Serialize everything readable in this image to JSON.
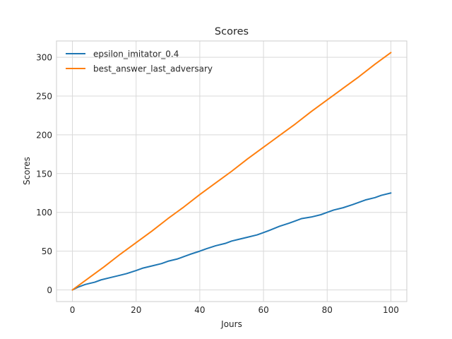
{
  "chart_data": {
    "type": "line",
    "title": "Scores",
    "xlabel": "Jours",
    "ylabel": "Scores",
    "xlim": [
      -5,
      105
    ],
    "ylim": [
      -15,
      321
    ],
    "xticks": [
      0,
      20,
      40,
      60,
      80,
      100
    ],
    "yticks": [
      0,
      50,
      100,
      150,
      200,
      250,
      300
    ],
    "grid": true,
    "legend_position": "top-left",
    "series": [
      {
        "name": "epsilon_imitator_0.4",
        "color": "#1f77b4",
        "x": [
          0,
          2,
          4,
          7,
          9,
          12,
          15,
          17,
          20,
          22,
          25,
          28,
          30,
          33,
          35,
          37,
          40,
          42,
          45,
          48,
          50,
          52,
          55,
          58,
          60,
          62,
          65,
          68,
          70,
          72,
          75,
          78,
          80,
          82,
          85,
          88,
          90,
          92,
          95,
          97,
          100
        ],
        "values": [
          0,
          4,
          7,
          10,
          13,
          16,
          19,
          21,
          25,
          28,
          31,
          34,
          37,
          40,
          43,
          46,
          50,
          53,
          57,
          60,
          63,
          65,
          68,
          71,
          74,
          77,
          82,
          86,
          89,
          92,
          94,
          97,
          100,
          103,
          106,
          110,
          113,
          116,
          119,
          122,
          125
        ]
      },
      {
        "name": "best_answer_last_adversary",
        "color": "#ff7f0e",
        "x": [
          0,
          5,
          10,
          15,
          20,
          25,
          30,
          35,
          40,
          45,
          50,
          55,
          60,
          65,
          70,
          75,
          80,
          85,
          90,
          95,
          100
        ],
        "values": [
          0,
          15,
          30,
          46,
          61,
          76,
          92,
          107,
          123,
          138,
          153,
          169,
          184,
          199,
          214,
          230,
          245,
          260,
          275,
          291,
          306
        ]
      }
    ]
  }
}
